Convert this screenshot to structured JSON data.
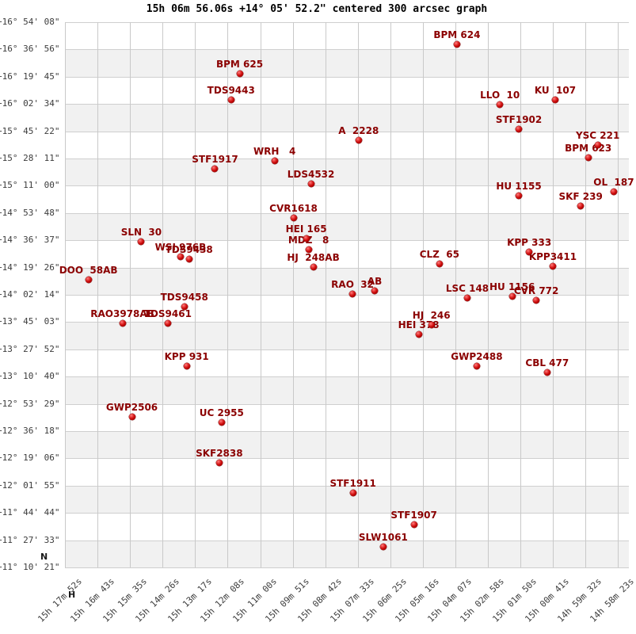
{
  "title": "15h 06m 56.06s +14° 05' 52.2\" centered 300 arcsec graph",
  "markers": {
    "north": "N",
    "hours": "H"
  },
  "chart_data": {
    "type": "scatter",
    "title": "15h 06m 56.06s +14° 05' 52.2\" centered 300 arcsec graph",
    "center": {
      "ra": "15h 06m 56.06s",
      "dec": "+14° 05' 52.2\"",
      "radius_label": "300 arcsec"
    },
    "grid": true,
    "x_axis": {
      "quantity": "right ascension",
      "direction": "decreasing-rightward",
      "ticks": [
        "15h 17m 52s",
        "15h 16m 43s",
        "15h 15m 35s",
        "15h 14m 26s",
        "15h 13m 17s",
        "15h 12m 08s",
        "15h 11m 00s",
        "15h 09m 51s",
        "15h 08m 42s",
        "15h 07m 33s",
        "15h 06m 25s",
        "15h 05m 16s",
        "15h 04m 07s",
        "15h 02m 58s",
        "15h 01m 50s",
        "15h 00m 41s",
        "14h 59m 32s",
        "14h 58m 23s"
      ]
    },
    "y_axis": {
      "quantity": "declination",
      "ticks": [
        "+16° 54' 08\"",
        "+16° 36' 56\"",
        "+16° 19' 45\"",
        "+16° 02' 34\"",
        "+15° 45' 22\"",
        "+15° 28' 11\"",
        "+15° 11' 00\"",
        "+14° 53' 48\"",
        "+14° 36' 37\"",
        "+14° 19' 26\"",
        "+14° 02' 14\"",
        "+13° 45' 03\"",
        "+13° 27' 52\"",
        "+13° 10' 40\"",
        "+12° 53' 29\"",
        "+12° 36' 18\"",
        "+12° 19' 06\"",
        "+12° 01' 55\"",
        "+11° 44' 44\"",
        "+11° 27' 33\"",
        "+11° 10' 21\""
      ]
    },
    "style": {
      "point_color": "#c00000",
      "label_color": "#8b0000",
      "band_color": "#f1f1f1",
      "grid_color": "#c9c9c9"
    },
    "points": [
      {
        "name": "BPM 624",
        "ra": "15h04m03s",
        "dec": "+16°40'08\""
      },
      {
        "name": "BPM 625",
        "ra": "15h11m43s",
        "dec": "+16°21'39\""
      },
      {
        "name": "TDS9443",
        "ra": "15h12m01s",
        "dec": "+16°05'10\""
      },
      {
        "name": "KU  107",
        "ra": "15h00m35s",
        "dec": "+16°05'10\""
      },
      {
        "name": "LLO  10",
        "ra": "15h02m32s",
        "dec": "+16°02'10\""
      },
      {
        "name": "STF1902",
        "ra": "15h01m52s",
        "dec": "+15°46'40\""
      },
      {
        "name": "A  2228",
        "ra": "15h07m31s",
        "dec": "+15°39'41\""
      },
      {
        "name": "YSC 221",
        "ra": "14h59m05s",
        "dec": "+15°36'41\""
      },
      {
        "name": "BPM 623",
        "ra": "14h59m25s",
        "dec": "+15°28'41\""
      },
      {
        "name": "WRH   4",
        "ra": "15h10m29s",
        "dec": "+15°26'41\""
      },
      {
        "name": "STF1917",
        "ra": "15h12m35s",
        "dec": "+15°21'41\""
      },
      {
        "name": "LDS4532",
        "ra": "15h09m12s",
        "dec": "+15°12'12\""
      },
      {
        "name": "OL  187",
        "ra": "14h58m31s",
        "dec": "+15°07'12\""
      },
      {
        "name": "HU 1155",
        "ra": "15h01m52s",
        "dec": "+15°04'42\""
      },
      {
        "name": "SKF 239",
        "ra": "14h59m41s",
        "dec": "+14°58'12\""
      },
      {
        "name": "CVR1618",
        "ra": "15h09m49s",
        "dec": "+14°50'43\""
      },
      {
        "name": "HEI 165",
        "ra": "15h09m22s",
        "dec": "+14°37'43\""
      },
      {
        "name": "SLN  30",
        "ra": "15h15m11s",
        "dec": "+14°35'43\""
      },
      {
        "name": "MDZ   8",
        "ra": "15h09m17s",
        "dec": "+14°30'44\""
      },
      {
        "name": "KPP 333",
        "ra": "15h01m30s",
        "dec": "+14°29'14\""
      },
      {
        "name": "WSI 976B",
        "ra": "15h13m48s",
        "dec": "+14°26'14\""
      },
      {
        "name": "TDS9438",
        "ra": "15h13m30s",
        "dec": "+14°24'44\""
      },
      {
        "name": "CLZ  65",
        "ra": "15h04m40s",
        "dec": "+14°21'44\""
      },
      {
        "name": "KPP3411",
        "ra": "15h00m40s",
        "dec": "+14°20'14\""
      },
      {
        "name": "HJ  248AB",
        "ra": "15h09m07s",
        "dec": "+14°19'44\""
      },
      {
        "name": "DOO  58AB",
        "ra": "15h17m03s",
        "dec": "+14°11'44\""
      },
      {
        "name": "AB",
        "ra": "15h06m57s",
        "dec": "+14°04'44\""
      },
      {
        "name": "RAO  32",
        "ra": "15h07m44s",
        "dec": "+14°02'45\""
      },
      {
        "name": "HU 1156",
        "ra": "15h02m06s",
        "dec": "+14°01'15\""
      },
      {
        "name": "LSC 148",
        "ra": "15h03m41s",
        "dec": "+14°00'15\""
      },
      {
        "name": "CVR 772",
        "ra": "15h01m15s",
        "dec": "+13°58'45\""
      },
      {
        "name": "TDS9458",
        "ra": "15h13m40s",
        "dec": "+13°54'45\""
      },
      {
        "name": "RAO3978AB",
        "ra": "15h15m51s",
        "dec": "+13°44'15\""
      },
      {
        "name": "TDS9461",
        "ra": "15h14m15s",
        "dec": "+13°44'15\""
      },
      {
        "name": "HJ  246",
        "ra": "15h04m57s",
        "dec": "+13°43'15\""
      },
      {
        "name": "HEI 378",
        "ra": "15h05m24s",
        "dec": "+13°37'16\""
      },
      {
        "name": "GWP2488",
        "ra": "15h03m21s",
        "dec": "+13°17'16\""
      },
      {
        "name": "KPP 931",
        "ra": "15h13m35s",
        "dec": "+13°17'16\""
      },
      {
        "name": "CBL 477",
        "ra": "15h00m52s",
        "dec": "+13°13'16\""
      },
      {
        "name": "GWP2506",
        "ra": "15h15m31s",
        "dec": "+12°45'18\""
      },
      {
        "name": "UC 2955",
        "ra": "15h12m21s",
        "dec": "+12°41'48\""
      },
      {
        "name": "SKF2838",
        "ra": "15h12m26s",
        "dec": "+12°16'18\""
      },
      {
        "name": "STF1911",
        "ra": "15h07m43s",
        "dec": "+11°57'19\""
      },
      {
        "name": "STF1907",
        "ra": "15h05m34s",
        "dec": "+11°37'20\""
      },
      {
        "name": "SLW1061",
        "ra": "15h06m39s",
        "dec": "+11°23'21\""
      }
    ]
  }
}
